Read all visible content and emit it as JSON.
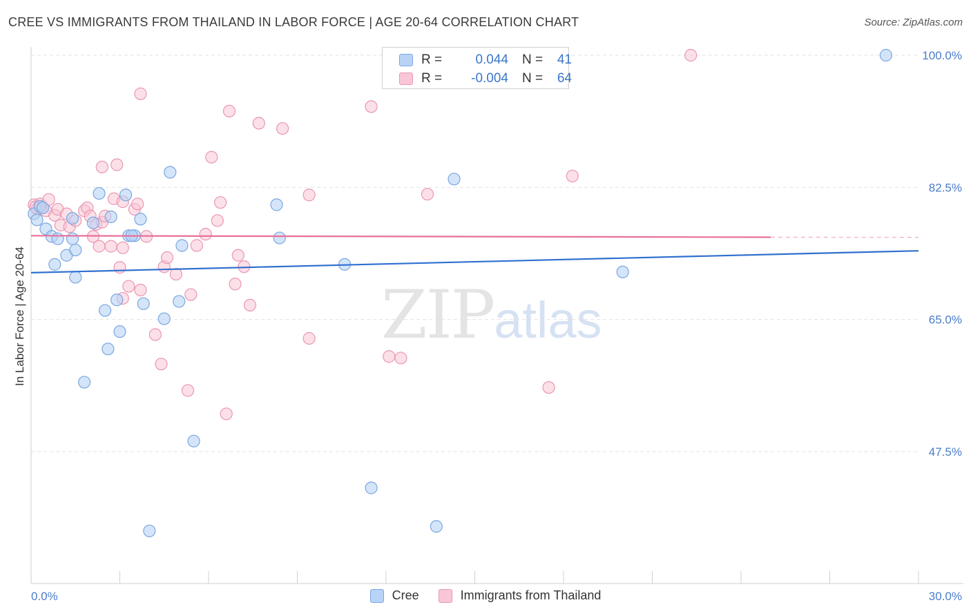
{
  "header": {
    "title": "CREE VS IMMIGRANTS FROM THAILAND IN LABOR FORCE | AGE 20-64 CORRELATION CHART",
    "source": "Source: ZipAtlas.com"
  },
  "legend": {
    "rows": [
      {
        "r_label": "R =",
        "r_value": "0.044",
        "n_label": "N =",
        "n_value": "41"
      },
      {
        "r_label": "R =",
        "r_value": "-0.004",
        "n_label": "N =",
        "n_value": "64"
      }
    ]
  },
  "watermark": {
    "zip": "ZIP",
    "atlas": "atlas"
  },
  "colors": {
    "cree_fill": "#b8d3f5",
    "cree_stroke": "#7aa6e0",
    "cree_line": "#2f6fcf",
    "thai_fill": "#f9c6d6",
    "thai_stroke": "#e996b1",
    "thai_line": "#e8709a",
    "axis_label": "#4a7cc9",
    "grid": "#e2e2e2"
  },
  "chart_data": {
    "type": "scatter",
    "title": "CREE VS IMMIGRANTS FROM THAILAND IN LABOR FORCE | AGE 20-64 CORRELATION CHART",
    "xlabel": "",
    "ylabel": "In Labor Force | Age 20-64",
    "xlim": [
      0,
      30
    ],
    "ylim": [
      32,
      101.5
    ],
    "x_tick_labels": [
      "0.0%",
      "30.0%"
    ],
    "y_ticks": [
      {
        "value": 100.0,
        "label": "100.0%"
      },
      {
        "value": 82.5,
        "label": "82.5%"
      },
      {
        "value": 65.0,
        "label": "65.0%"
      },
      {
        "value": 47.5,
        "label": "47.5%"
      }
    ],
    "series": [
      {
        "name": "Cree",
        "trend": {
          "x": [
            0,
            30
          ],
          "y": [
            71.2,
            74.1
          ]
        },
        "points": [
          {
            "x": 0.1,
            "y": 79.0
          },
          {
            "x": 0.3,
            "y": 80.0
          },
          {
            "x": 0.2,
            "y": 78.2
          },
          {
            "x": 0.5,
            "y": 77.0
          },
          {
            "x": 0.7,
            "y": 76.0
          },
          {
            "x": 0.9,
            "y": 75.7
          },
          {
            "x": 1.4,
            "y": 78.4
          },
          {
            "x": 1.4,
            "y": 75.7
          },
          {
            "x": 2.1,
            "y": 77.8
          },
          {
            "x": 1.2,
            "y": 73.5
          },
          {
            "x": 0.8,
            "y": 72.3
          },
          {
            "x": 1.5,
            "y": 74.2
          },
          {
            "x": 2.3,
            "y": 81.7
          },
          {
            "x": 2.7,
            "y": 78.6
          },
          {
            "x": 3.2,
            "y": 81.5
          },
          {
            "x": 3.3,
            "y": 76.1
          },
          {
            "x": 3.5,
            "y": 76.1
          },
          {
            "x": 3.7,
            "y": 78.3
          },
          {
            "x": 4.7,
            "y": 84.5
          },
          {
            "x": 5.1,
            "y": 74.8
          },
          {
            "x": 8.3,
            "y": 80.2
          },
          {
            "x": 8.4,
            "y": 75.8
          },
          {
            "x": 1.5,
            "y": 70.6
          },
          {
            "x": 2.9,
            "y": 67.6
          },
          {
            "x": 3.8,
            "y": 67.1
          },
          {
            "x": 5.0,
            "y": 67.4
          },
          {
            "x": 2.5,
            "y": 66.2
          },
          {
            "x": 4.5,
            "y": 65.1
          },
          {
            "x": 3.0,
            "y": 63.4
          },
          {
            "x": 2.6,
            "y": 61.1
          },
          {
            "x": 1.8,
            "y": 56.7
          },
          {
            "x": 5.5,
            "y": 48.9
          },
          {
            "x": 10.6,
            "y": 72.3
          },
          {
            "x": 14.3,
            "y": 83.6
          },
          {
            "x": 20.0,
            "y": 71.3
          },
          {
            "x": 11.5,
            "y": 42.7
          },
          {
            "x": 13.7,
            "y": 37.6
          },
          {
            "x": 4.0,
            "y": 37.0
          },
          {
            "x": 28.9,
            "y": 100.0
          },
          {
            "x": 3.4,
            "y": 76.1
          },
          {
            "x": 0.4,
            "y": 79.8
          }
        ]
      },
      {
        "name": "Immigrants from Thailand",
        "trend": {
          "x": [
            0,
            25
          ],
          "y": [
            76.1,
            75.9
          ]
        },
        "points": [
          {
            "x": 0.1,
            "y": 80.2
          },
          {
            "x": 0.2,
            "y": 79.6
          },
          {
            "x": 0.3,
            "y": 80.3
          },
          {
            "x": 0.35,
            "y": 79.8
          },
          {
            "x": 0.5,
            "y": 79.4
          },
          {
            "x": 0.6,
            "y": 80.9
          },
          {
            "x": 0.8,
            "y": 78.8
          },
          {
            "x": 0.9,
            "y": 79.6
          },
          {
            "x": 1.0,
            "y": 77.5
          },
          {
            "x": 1.2,
            "y": 79.0
          },
          {
            "x": 1.3,
            "y": 77.3
          },
          {
            "x": 1.5,
            "y": 78.1
          },
          {
            "x": 1.8,
            "y": 79.4
          },
          {
            "x": 1.9,
            "y": 79.8
          },
          {
            "x": 2.0,
            "y": 78.7
          },
          {
            "x": 2.2,
            "y": 77.6
          },
          {
            "x": 2.4,
            "y": 77.9
          },
          {
            "x": 2.1,
            "y": 76.0
          },
          {
            "x": 2.5,
            "y": 78.7
          },
          {
            "x": 2.7,
            "y": 74.7
          },
          {
            "x": 2.8,
            "y": 81.0
          },
          {
            "x": 3.1,
            "y": 80.6
          },
          {
            "x": 3.5,
            "y": 79.6
          },
          {
            "x": 3.6,
            "y": 80.3
          },
          {
            "x": 2.3,
            "y": 74.7
          },
          {
            "x": 3.1,
            "y": 74.5
          },
          {
            "x": 3.0,
            "y": 71.9
          },
          {
            "x": 3.3,
            "y": 69.4
          },
          {
            "x": 3.7,
            "y": 68.9
          },
          {
            "x": 3.9,
            "y": 76.0
          },
          {
            "x": 4.2,
            "y": 63.0
          },
          {
            "x": 4.4,
            "y": 59.1
          },
          {
            "x": 4.5,
            "y": 72.0
          },
          {
            "x": 4.6,
            "y": 73.2
          },
          {
            "x": 4.9,
            "y": 71.0
          },
          {
            "x": 5.3,
            "y": 55.6
          },
          {
            "x": 5.4,
            "y": 68.3
          },
          {
            "x": 5.6,
            "y": 74.8
          },
          {
            "x": 5.9,
            "y": 76.3
          },
          {
            "x": 6.1,
            "y": 86.5
          },
          {
            "x": 6.3,
            "y": 78.1
          },
          {
            "x": 6.4,
            "y": 80.5
          },
          {
            "x": 6.7,
            "y": 92.6
          },
          {
            "x": 6.6,
            "y": 52.5
          },
          {
            "x": 6.9,
            "y": 69.7
          },
          {
            "x": 7.0,
            "y": 73.5
          },
          {
            "x": 7.2,
            "y": 72.0
          },
          {
            "x": 7.4,
            "y": 66.9
          },
          {
            "x": 7.7,
            "y": 91.0
          },
          {
            "x": 3.7,
            "y": 94.9
          },
          {
            "x": 2.4,
            "y": 85.2
          },
          {
            "x": 2.9,
            "y": 85.5
          },
          {
            "x": 3.1,
            "y": 67.8
          },
          {
            "x": 8.5,
            "y": 90.3
          },
          {
            "x": 9.4,
            "y": 81.5
          },
          {
            "x": 9.4,
            "y": 62.5
          },
          {
            "x": 11.5,
            "y": 93.2
          },
          {
            "x": 12.1,
            "y": 60.1
          },
          {
            "x": 12.5,
            "y": 59.9
          },
          {
            "x": 13.4,
            "y": 81.6
          },
          {
            "x": 17.5,
            "y": 56.0
          },
          {
            "x": 18.3,
            "y": 84.0
          },
          {
            "x": 22.3,
            "y": 100.0
          },
          {
            "x": 0.15,
            "y": 79.9
          }
        ]
      }
    ]
  },
  "bottom_legend": [
    {
      "label": "Cree"
    },
    {
      "label": "Immigrants from Thailand"
    }
  ]
}
